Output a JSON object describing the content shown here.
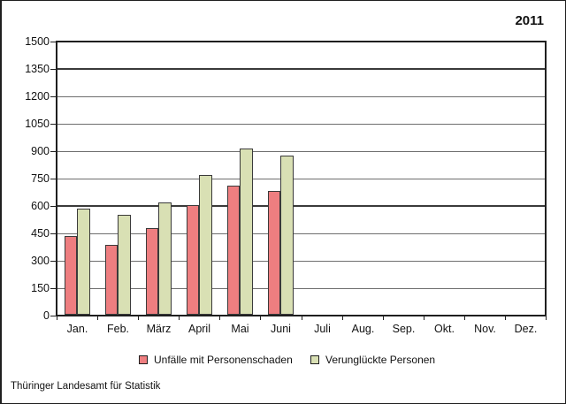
{
  "year_label": "2011",
  "source_label": "Thüringer Landesamt für Statistik",
  "chart_data": {
    "type": "bar",
    "title": "2011",
    "categories": [
      "Jan.",
      "Feb.",
      "März",
      "April",
      "Mai",
      "Juni",
      "Juli",
      "Aug.",
      "Sep.",
      "Okt.",
      "Nov.",
      "Dez."
    ],
    "series": [
      {
        "name": "Unfälle mit Personenschaden",
        "color": "#ee7e80",
        "values": [
          435,
          385,
          480,
          605,
          710,
          680,
          null,
          null,
          null,
          null,
          null,
          null
        ]
      },
      {
        "name": "Verunglückte Personen",
        "color": "#d9e0b4",
        "values": [
          585,
          550,
          620,
          770,
          915,
          875,
          null,
          null,
          null,
          null,
          null,
          null
        ]
      }
    ],
    "xlabel": "",
    "ylabel": "",
    "ylim": [
      0,
      1500
    ],
    "ytick_step": 150,
    "emphasized_yticks": [
      1350,
      600
    ],
    "grid": true,
    "legend_position": "bottom",
    "bar_border_color": "#3a3a3a"
  }
}
